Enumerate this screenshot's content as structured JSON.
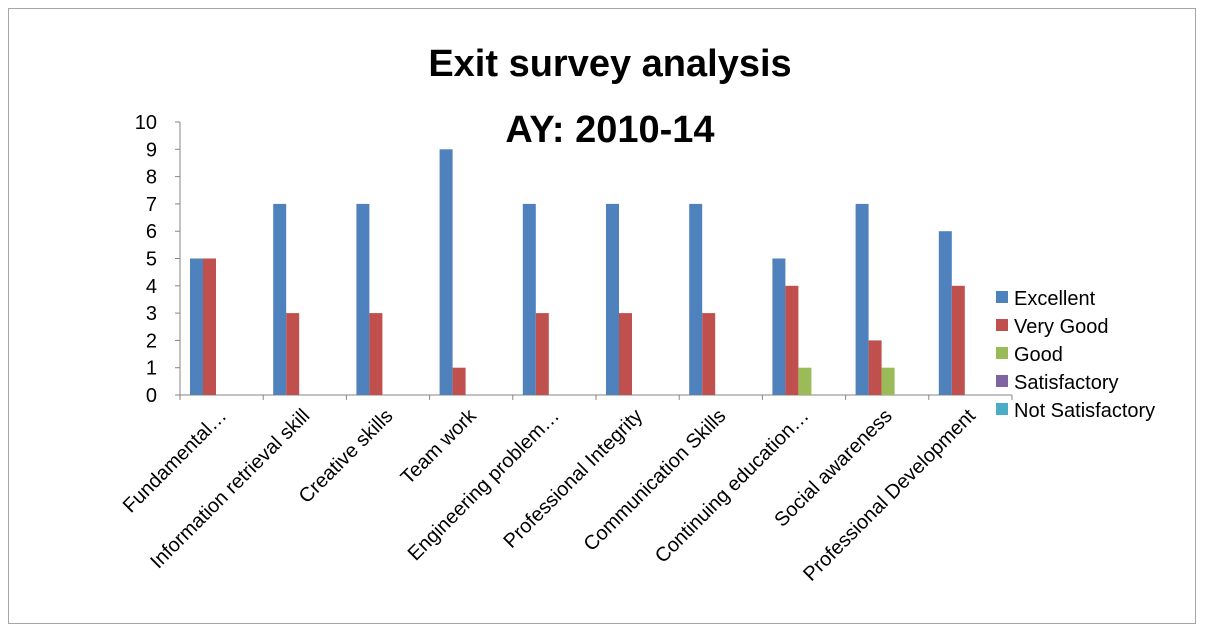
{
  "chart_data": {
    "type": "bar",
    "title": "Exit survey analysis",
    "subtitle": "AY: 2010-14",
    "categories": [
      "Fundamental…",
      "Information retrieval skill",
      "Creative skills",
      "Team work",
      "Engineering problem…",
      "Professional Integrity",
      "Communication Skills",
      "Continuing education…",
      "Social awareness",
      "Professional Development"
    ],
    "series": [
      {
        "name": "Excellent",
        "color": "#4f81bd",
        "values": [
          5,
          7,
          7,
          9,
          7,
          7,
          7,
          5,
          7,
          6
        ]
      },
      {
        "name": "Very Good",
        "color": "#c0504d",
        "values": [
          5,
          3,
          3,
          1,
          3,
          3,
          3,
          4,
          2,
          4
        ]
      },
      {
        "name": "Good",
        "color": "#9bbb59",
        "values": [
          0,
          0,
          0,
          0,
          0,
          0,
          0,
          1,
          1,
          0
        ]
      },
      {
        "name": "Satisfactory",
        "color": "#8064a2",
        "values": [
          0,
          0,
          0,
          0,
          0,
          0,
          0,
          0,
          0,
          0
        ]
      },
      {
        "name": "Not Satisfactory",
        "color": "#4bacc6",
        "values": [
          0,
          0,
          0,
          0,
          0,
          0,
          0,
          0,
          0,
          0
        ]
      }
    ],
    "ylim": [
      0,
      10
    ],
    "yticks": [
      0,
      1,
      2,
      3,
      4,
      5,
      6,
      7,
      8,
      9,
      10
    ],
    "grid": false,
    "legend_position": "right"
  }
}
